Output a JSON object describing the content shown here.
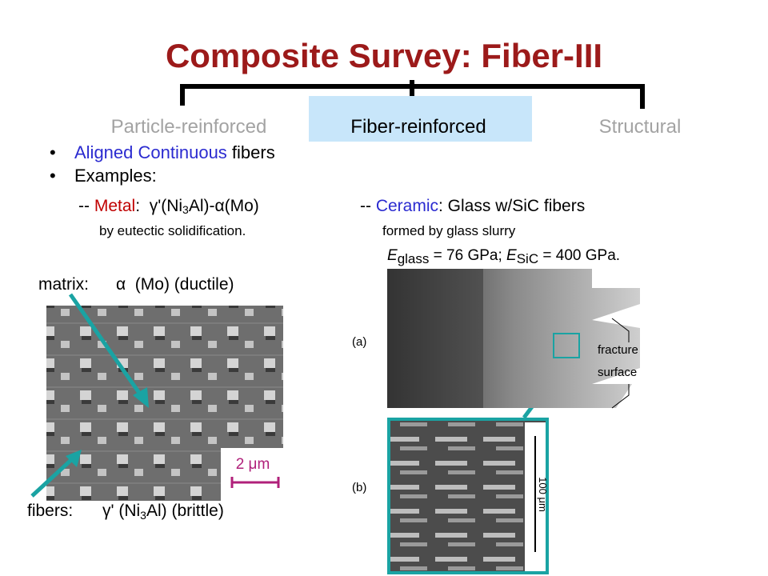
{
  "title": "Composite Survey: Fiber-III",
  "tabs": [
    "Particle-reinforced",
    "Fiber-reinforced",
    "Structural"
  ],
  "bullets": [
    [
      "Aligned Continuous",
      " fibers"
    ],
    [
      "Examples:"
    ]
  ],
  "metal": {
    "line": [
      "-- ",
      "Metal",
      ":  γ'(Ni",
      "3",
      "Al)-α(Mo)"
    ],
    "note": "by eutectic solidification."
  },
  "ceramic": {
    "line": [
      "-- ",
      "Ceramic",
      ": Glass w/SiC fibers"
    ],
    "note": "formed by glass slurry",
    "moduli": [
      "E",
      "glass",
      " = 76 GPa; ",
      "E",
      "SiC",
      " = 400 GPa."
    ]
  },
  "matrix_label": [
    "matrix:",
    "α  (Mo) (ductile)"
  ],
  "fibers_label": [
    "fibers:",
    "γ' (Ni",
    "3",
    "Al) (brittle)"
  ],
  "scale_bar": "2 μm",
  "panel_labels": [
    "(a)",
    "(b)"
  ],
  "fracture_label": [
    "fracture",
    "surface"
  ],
  "scale_b": "100 μm"
}
